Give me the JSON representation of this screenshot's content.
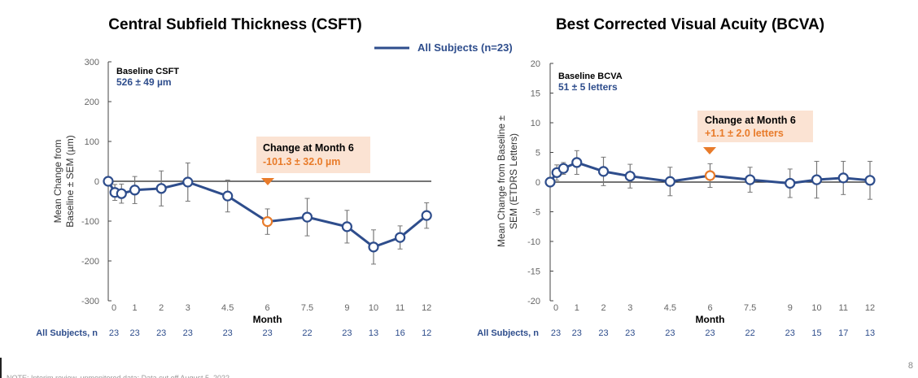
{
  "legend": {
    "label": "All Subjects (n=23)",
    "color": "#2e4d8c"
  },
  "footnote": "NOTE: Interim review, unmonitored data; Data cut off August 5, 2022",
  "page_number": "8",
  "chart_data": [
    {
      "type": "line",
      "title": "Central Subfield Thickness (CSFT)",
      "xlabel": "Month",
      "ylabel": [
        "Mean Change from",
        "Baseline ± SEM (µm)"
      ],
      "ylim": [
        -300,
        300
      ],
      "yticks": [
        "300",
        "200",
        "100",
        "0",
        "-100",
        "-200",
        "-300"
      ],
      "ytick_values": [
        300,
        200,
        100,
        0,
        -100,
        -200,
        -300
      ],
      "xticks": [
        "0",
        "1",
        "2",
        "3",
        "4.5",
        "6",
        "7.5",
        "9",
        "10",
        "11",
        "12"
      ],
      "xtick_values": [
        0,
        1,
        2,
        3,
        4.5,
        6,
        7.5,
        9,
        10,
        11,
        12
      ],
      "n_label": "All Subjects, n",
      "n_values": [
        "23",
        "23",
        "23",
        "23",
        "23",
        "23",
        "22",
        "23",
        "13",
        "16",
        "12"
      ],
      "x": [
        0,
        0.25,
        0.5,
        1,
        2,
        3,
        4.5,
        6,
        7.5,
        9,
        10,
        11,
        12
      ],
      "y": [
        0,
        -28,
        -31,
        -22,
        -18,
        -2,
        -37,
        -101.3,
        -90,
        -114,
        -165,
        -141,
        -86
      ],
      "sem": [
        0,
        20,
        24,
        34,
        44,
        48,
        40,
        32.0,
        47,
        41,
        43,
        29,
        32
      ],
      "highlight_x": 6,
      "baseline": {
        "label": "Baseline CSFT",
        "value": "526 ± 49 µm"
      },
      "annotation": {
        "label": "Change at Month 6",
        "value": "-101.3 ± 32.0 µm"
      },
      "colors": {
        "line": "#2e4d8c",
        "highlight": "#e87b2a",
        "annotation_bg": "#fbe3d3"
      }
    },
    {
      "type": "line",
      "title": "Best Corrected Visual Acuity (BCVA)",
      "xlabel": "Month",
      "ylabel": [
        "Mean Change from Baseline ±",
        "SEM (ETDRS Letters)"
      ],
      "ylim": [
        -20,
        20
      ],
      "yticks": [
        "20",
        "15",
        "10",
        "5",
        "0",
        "-5",
        "-10",
        "-15",
        "-20"
      ],
      "ytick_values": [
        20,
        15,
        10,
        5,
        0,
        -5,
        -10,
        -15,
        -20
      ],
      "xticks": [
        "0",
        "1",
        "2",
        "3",
        "4.5",
        "6",
        "7.5",
        "9",
        "10",
        "11",
        "12"
      ],
      "xtick_values": [
        0,
        1,
        2,
        3,
        4.5,
        6,
        7.5,
        9,
        10,
        11,
        12
      ],
      "n_label": "All Subjects, n",
      "n_values": [
        "23",
        "23",
        "23",
        "23",
        "23",
        "23",
        "22",
        "23",
        "15",
        "17",
        "13"
      ],
      "x": [
        0,
        0.25,
        0.5,
        1,
        2,
        3,
        4.5,
        6,
        7.5,
        9,
        10,
        11,
        12
      ],
      "y": [
        0,
        1.6,
        2.3,
        3.3,
        1.8,
        1.0,
        0.1,
        1.1,
        0.4,
        -0.2,
        0.4,
        0.7,
        0.3
      ],
      "sem": [
        0,
        1.3,
        1.0,
        2.0,
        2.4,
        2.0,
        2.4,
        2.0,
        2.1,
        2.4,
        3.1,
        2.8,
        3.2
      ],
      "highlight_x": 6,
      "baseline": {
        "label": "Baseline BCVA",
        "value": "51 ± 5 letters"
      },
      "annotation": {
        "label": "Change at Month 6",
        "value": "+1.1 ± 2.0 letters"
      },
      "colors": {
        "line": "#2e4d8c",
        "highlight": "#e87b2a",
        "annotation_bg": "#fbe3d3"
      }
    }
  ]
}
